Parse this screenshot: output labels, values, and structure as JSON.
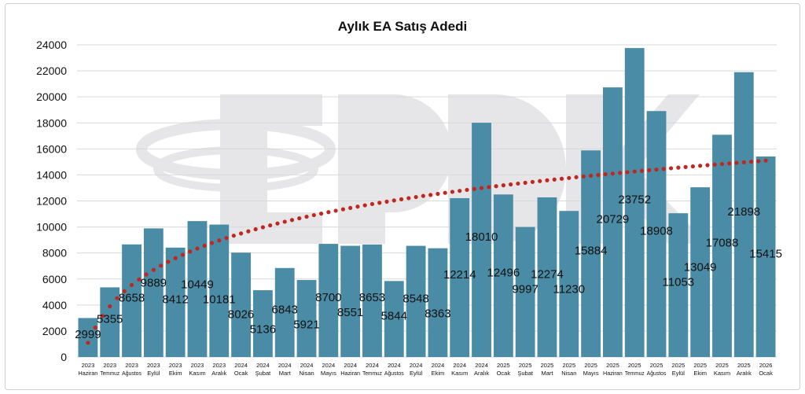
{
  "chart_data": {
    "type": "bar",
    "title": "Aylık EA Satış Adedi",
    "watermark": "EPDK",
    "categories": [
      [
        "2023",
        "Haziran"
      ],
      [
        "2023",
        "Temmuz"
      ],
      [
        "2023",
        "Ağustos"
      ],
      [
        "2023",
        "Eylül"
      ],
      [
        "2023",
        "Ekim"
      ],
      [
        "2023",
        "Kasım"
      ],
      [
        "2023",
        "Aralık"
      ],
      [
        "2024",
        "Ocak"
      ],
      [
        "2024",
        "Şubat"
      ],
      [
        "2024",
        "Mart"
      ],
      [
        "2024",
        "Nisan"
      ],
      [
        "2024",
        "Mayıs"
      ],
      [
        "2024",
        "Haziran"
      ],
      [
        "2024",
        "Temmuz"
      ],
      [
        "2024",
        "Ağustos"
      ],
      [
        "2024",
        "Eylül"
      ],
      [
        "2024",
        "Ekim"
      ],
      [
        "2024",
        "Kasım"
      ],
      [
        "2024",
        "Aralık"
      ],
      [
        "2025",
        "Ocak"
      ],
      [
        "2025",
        "Şubat"
      ],
      [
        "2025",
        "Mart"
      ],
      [
        "2025",
        "Nisan"
      ],
      [
        "2025",
        "Mayıs"
      ],
      [
        "2025",
        "Haziran"
      ],
      [
        "2025",
        "Temmuz"
      ],
      [
        "2025",
        "Ağustos"
      ],
      [
        "2025",
        "Eylül"
      ],
      [
        "2025",
        "Ekim"
      ],
      [
        "2025",
        "Kasım"
      ],
      [
        "2025",
        "Aralık"
      ],
      [
        "2026",
        "Ocak"
      ]
    ],
    "values": [
      2999,
      5355,
      8658,
      9889,
      8412,
      10449,
      10181,
      8026,
      5136,
      6843,
      5921,
      8700,
      8551,
      8653,
      5844,
      8548,
      8363,
      12214,
      18010,
      12496,
      9997,
      12274,
      11230,
      15884,
      20729,
      23752,
      18908,
      11053,
      13049,
      17088,
      21898,
      15415
    ],
    "ylim": [
      0,
      24000
    ],
    "yticks": [
      0,
      2000,
      4000,
      6000,
      8000,
      10000,
      12000,
      14000,
      16000,
      18000,
      20000,
      22000,
      24000
    ],
    "trendline": {
      "type": "logarithmic",
      "start": 1100,
      "end": 15100
    },
    "colors": {
      "bar": "#4a8ba5",
      "trend": "#c0281f",
      "grid": "#d9d9d9"
    },
    "grid": true,
    "legend": "none"
  }
}
